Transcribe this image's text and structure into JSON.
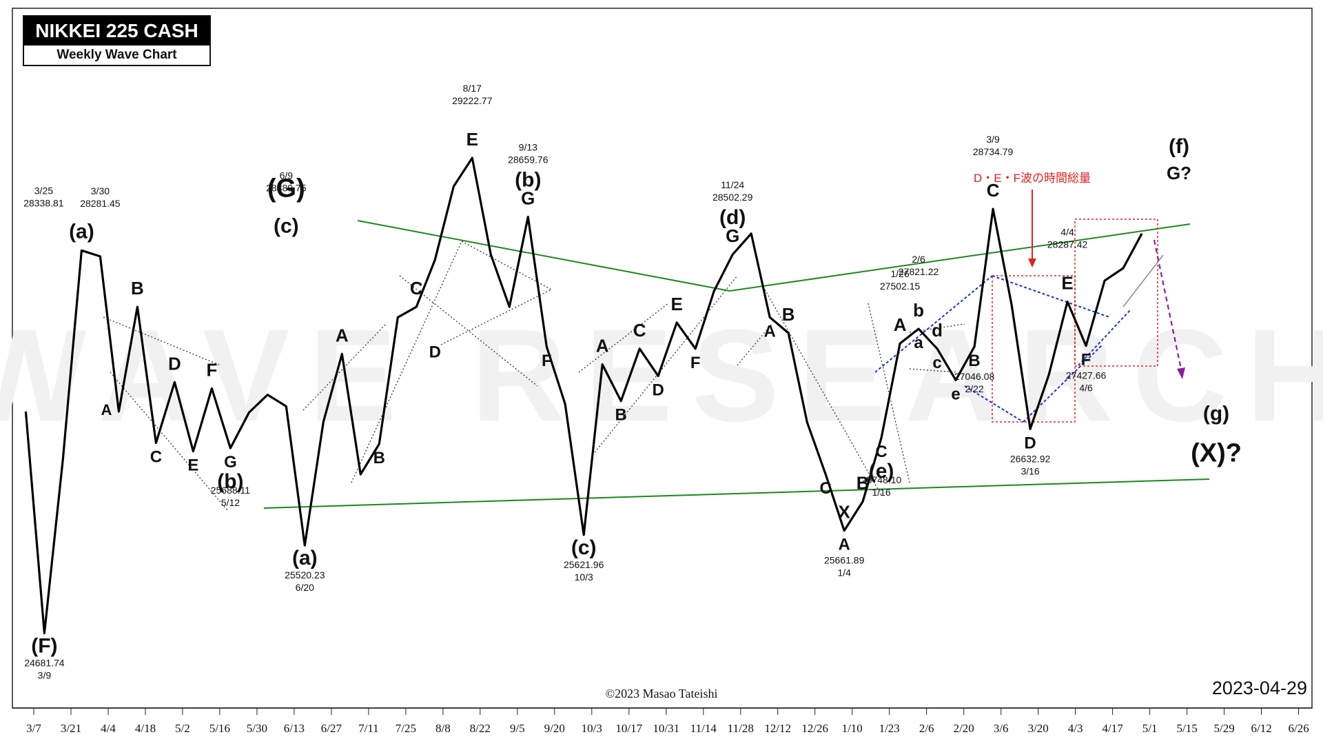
{
  "header": {
    "title": "NIKKEI 225 CASH",
    "subtitle": "Weekly Wave Chart"
  },
  "watermark": "WAVE RESEARCH",
  "copyright": "©2023 Masao Tateishi",
  "chart_date": "2023-04-29",
  "colors": {
    "price_line": "#000000",
    "trendline": "#1a8a1a",
    "projection_box": "#e02020",
    "blue_channel": "#1a2fd8",
    "forecast_arrow": "#8a1aa0",
    "note_text": "#e02020",
    "watermark": "#f1f1f1"
  },
  "annotation": {
    "note": "D・E・F波の時間総量"
  },
  "chart_data": {
    "type": "line",
    "title": "NIKKEI 225 CASH",
    "subtitle": "Weekly Wave Chart",
    "x_tick_labels": [
      "3/7",
      "3/21",
      "4/4",
      "4/18",
      "5/2",
      "5/16",
      "5/30",
      "6/13",
      "6/27",
      "7/11",
      "7/25",
      "8/8",
      "8/22",
      "9/5",
      "9/20",
      "10/3",
      "10/17",
      "10/31",
      "11/14",
      "11/28",
      "12/12",
      "12/26",
      "1/10",
      "1/23",
      "2/6",
      "2/20",
      "3/6",
      "3/20",
      "4/3",
      "4/17",
      "5/1",
      "5/15",
      "5/29",
      "6/12",
      "6/26"
    ],
    "series": [
      {
        "x": [
          "2022-03-04",
          "2022-03-11",
          "2022-03-18",
          "2022-03-25",
          "2022-04-01",
          "2022-04-08",
          "2022-04-15",
          "2022-04-22",
          "2022-04-29",
          "2022-05-06",
          "2022-05-13",
          "2022-05-20",
          "2022-05-27",
          "2022-06-03",
          "2022-06-10",
          "2022-06-17",
          "2022-06-24",
          "2022-07-01",
          "2022-07-08",
          "2022-07-15",
          "2022-07-22",
          "2022-07-29",
          "2022-08-05",
          "2022-08-12",
          "2022-08-19",
          "2022-08-26",
          "2022-09-02",
          "2022-09-09",
          "2022-09-16",
          "2022-09-23",
          "2022-09-30",
          "2022-10-07",
          "2022-10-14",
          "2022-10-21",
          "2022-10-28",
          "2022-11-04",
          "2022-11-11",
          "2022-11-18",
          "2022-11-25",
          "2022-12-02",
          "2022-12-09",
          "2022-12-16",
          "2022-12-23",
          "2022-12-30",
          "2023-01-06",
          "2023-01-13",
          "2023-01-20",
          "2023-01-27",
          "2023-02-03",
          "2023-02-10",
          "2023-02-17",
          "2023-02-24",
          "2023-03-03",
          "2023-03-10",
          "2023-03-17",
          "2023-03-24",
          "2023-03-31",
          "2023-04-07",
          "2023-04-14",
          "2023-04-21",
          "2023-04-28"
        ],
        "y": [
          26800,
          24682,
          26350,
          28339,
          28282,
          26800,
          27800,
          26500,
          27080,
          26420,
          27020,
          26450,
          26790,
          26960,
          26850,
          25520,
          26700,
          27350,
          26200,
          26490,
          27700,
          27800,
          28250,
          28950,
          29223,
          28300,
          27800,
          28660,
          27420,
          26870,
          25622,
          27250,
          26900,
          27400,
          27140,
          27650,
          27400,
          27950,
          28300,
          28500,
          27700,
          27550,
          26700,
          26200,
          25662,
          25940,
          26550,
          27450,
          27590,
          27400,
          27100,
          27420,
          28735,
          27820,
          26633,
          27150,
          27850,
          27428,
          28050,
          28170,
          28500
        ]
      }
    ],
    "x_range": [
      "2022-02-28",
      "2023-06-30"
    ],
    "y_range": [
      24000,
      30600
    ],
    "y_axis_shown": false,
    "grid": false,
    "legend": "none",
    "labels": [
      {
        "text": "(F)",
        "x": "2022-03-11",
        "y": 24682,
        "pos": "below",
        "big": true
      },
      {
        "text": "24681.74",
        "x": "2022-03-11",
        "y": 24682,
        "pos": "below2"
      },
      {
        "text": "3/9",
        "x": "2022-03-11",
        "y": 24682,
        "pos": "below3"
      },
      {
        "text": "(a)",
        "x": "2022-03-25",
        "y": 28339,
        "pos": "above",
        "big": true
      },
      {
        "text": "3/25",
        "x": "2022-03-25",
        "y": 28339,
        "pos": "above_far_left"
      },
      {
        "text": "28338.81",
        "x": "2022-03-25",
        "y": 28339,
        "pos": "above_far_left2"
      },
      {
        "text": "3/30",
        "x": "2022-04-01",
        "y": 28282,
        "pos": "above_far"
      },
      {
        "text": "28281.45",
        "x": "2022-04-01",
        "y": 28282,
        "pos": "above_far2"
      },
      {
        "text": "B",
        "x": "2022-04-15",
        "y": 27800,
        "pos": "above"
      },
      {
        "text": "A",
        "x": "2022-04-08",
        "y": 26800,
        "pos": "left"
      },
      {
        "text": "C",
        "x": "2022-04-22",
        "y": 26500,
        "pos": "below"
      },
      {
        "text": "D",
        "x": "2022-04-29",
        "y": 27080,
        "pos": "above"
      },
      {
        "text": "E",
        "x": "2022-05-06",
        "y": 26420,
        "pos": "below"
      },
      {
        "text": "F",
        "x": "2022-05-13",
        "y": 27020,
        "pos": "above"
      },
      {
        "text": "G",
        "x": "2022-05-20",
        "y": 26450,
        "pos": "below"
      },
      {
        "text": "(b)",
        "x": "2022-05-20",
        "y": 26450,
        "pos": "below2big"
      },
      {
        "text": "25688.11",
        "x": "2022-05-20",
        "y": 26450,
        "pos": "below3"
      },
      {
        "text": "5/12",
        "x": "2022-05-20",
        "y": 26450,
        "pos": "below4"
      },
      {
        "text": "(G)",
        "x": "2022-06-10",
        "y": 28390,
        "pos": "above_huge"
      },
      {
        "text": "(c)",
        "x": "2022-06-10",
        "y": 28390,
        "pos": "above",
        "big": true
      },
      {
        "text": "6/9",
        "x": "2022-06-10",
        "y": 28390,
        "pos": "above_top1"
      },
      {
        "text": "28389.75",
        "x": "2022-06-10",
        "y": 28390,
        "pos": "above_top2"
      },
      {
        "text": "(a)",
        "x": "2022-06-17",
        "y": 25520,
        "pos": "below",
        "big": true
      },
      {
        "text": "25520.23",
        "x": "2022-06-17",
        "y": 25520,
        "pos": "below2"
      },
      {
        "text": "6/20",
        "x": "2022-06-17",
        "y": 25520,
        "pos": "below3"
      },
      {
        "text": "A",
        "x": "2022-07-01",
        "y": 27350,
        "pos": "above"
      },
      {
        "text": "B",
        "x": "2022-07-15",
        "y": 26490,
        "pos": "below"
      },
      {
        "text": "C",
        "x": "2022-07-29",
        "y": 27800,
        "pos": "above"
      },
      {
        "text": "D",
        "x": "2022-08-05",
        "y": 27500,
        "pos": "below"
      },
      {
        "text": "E",
        "x": "2022-08-19",
        "y": 29223,
        "pos": "above"
      },
      {
        "text": "8/17",
        "x": "2022-08-19",
        "y": 29223,
        "pos": "above_top1"
      },
      {
        "text": "29222.77",
        "x": "2022-08-19",
        "y": 29223,
        "pos": "above_top2"
      },
      {
        "text": "F",
        "x": "2022-09-16",
        "y": 27420,
        "pos": "below"
      },
      {
        "text": "G",
        "x": "2022-09-09",
        "y": 28660,
        "pos": "above"
      },
      {
        "text": "(b)",
        "x": "2022-09-09",
        "y": 28660,
        "pos": "above2big"
      },
      {
        "text": "9/13",
        "x": "2022-09-09",
        "y": 28660,
        "pos": "above_top1"
      },
      {
        "text": "28659.76",
        "x": "2022-09-09",
        "y": 28660,
        "pos": "above_top2"
      },
      {
        "text": "(c)",
        "x": "2022-09-30",
        "y": 25622,
        "pos": "below",
        "big": true
      },
      {
        "text": "25621.96",
        "x": "2022-09-30",
        "y": 25622,
        "pos": "below2"
      },
      {
        "text": "10/3",
        "x": "2022-09-30",
        "y": 25622,
        "pos": "below3"
      },
      {
        "text": "A",
        "x": "2022-10-07",
        "y": 27250,
        "pos": "above"
      },
      {
        "text": "B",
        "x": "2022-10-14",
        "y": 26900,
        "pos": "below"
      },
      {
        "text": "C",
        "x": "2022-10-21",
        "y": 27400,
        "pos": "above"
      },
      {
        "text": "D",
        "x": "2022-10-28",
        "y": 27140,
        "pos": "below"
      },
      {
        "text": "E",
        "x": "2022-11-04",
        "y": 27650,
        "pos": "above"
      },
      {
        "text": "F",
        "x": "2022-11-11",
        "y": 27400,
        "pos": "below"
      },
      {
        "text": "G",
        "x": "2022-11-25",
        "y": 28300,
        "pos": "above"
      },
      {
        "text": "(d)",
        "x": "2022-11-25",
        "y": 28300,
        "pos": "above2big"
      },
      {
        "text": "11/24",
        "x": "2022-11-25",
        "y": 28300,
        "pos": "above_top1"
      },
      {
        "text": "28502.29",
        "x": "2022-11-25",
        "y": 28300,
        "pos": "above_top2"
      },
      {
        "text": "A",
        "x": "2022-12-09",
        "y": 27700,
        "pos": "below"
      },
      {
        "text": "B",
        "x": "2022-12-16",
        "y": 27550,
        "pos": "above"
      },
      {
        "text": "C",
        "x": "2022-12-30",
        "y": 26200,
        "pos": "below"
      },
      {
        "text": "X",
        "x": "2023-01-06",
        "y": 25662,
        "pos": "above"
      },
      {
        "text": "A",
        "x": "2023-01-06",
        "y": 25662,
        "pos": "below"
      },
      {
        "text": "25661.89",
        "x": "2023-01-06",
        "y": 25662,
        "pos": "below2"
      },
      {
        "text": "1/4",
        "x": "2023-01-06",
        "y": 25662,
        "pos": "below3"
      },
      {
        "text": "B",
        "x": "2023-01-13",
        "y": 25940,
        "pos": "above"
      },
      {
        "text": "C",
        "x": "2023-01-20",
        "y": 26550,
        "pos": "below"
      },
      {
        "text": "(e)",
        "x": "2023-01-20",
        "y": 26550,
        "pos": "below2big"
      },
      {
        "text": "25748.10",
        "x": "2023-01-20",
        "y": 26550,
        "pos": "below3"
      },
      {
        "text": "1/16",
        "x": "2023-01-20",
        "y": 26550,
        "pos": "below4"
      },
      {
        "text": "A",
        "x": "2023-01-27",
        "y": 27450,
        "pos": "above"
      },
      {
        "text": "1/26",
        "x": "2023-01-27",
        "y": 27450,
        "pos": "above_top1"
      },
      {
        "text": "27502.15",
        "x": "2023-01-27",
        "y": 27450,
        "pos": "above_top2"
      },
      {
        "text": "a",
        "x": "2023-02-03",
        "y": 27590,
        "pos": "below"
      },
      {
        "text": "b",
        "x": "2023-02-03",
        "y": 27590,
        "pos": "above"
      },
      {
        "text": "2/6",
        "x": "2023-02-03",
        "y": 27590,
        "pos": "above_top1"
      },
      {
        "text": "27821.22",
        "x": "2023-02-03",
        "y": 27590,
        "pos": "above_top2"
      },
      {
        "text": "c",
        "x": "2023-02-10",
        "y": 27400,
        "pos": "below"
      },
      {
        "text": "d",
        "x": "2023-02-10",
        "y": 27400,
        "pos": "above"
      },
      {
        "text": "e",
        "x": "2023-02-17",
        "y": 27100,
        "pos": "below"
      },
      {
        "text": "B",
        "x": "2023-02-24",
        "y": 27420,
        "pos": "below"
      },
      {
        "text": "27046.08",
        "x": "2023-02-24",
        "y": 27420,
        "pos": "below2"
      },
      {
        "text": "2/22",
        "x": "2023-02-24",
        "y": 27420,
        "pos": "below3"
      },
      {
        "text": "C",
        "x": "2023-03-03",
        "y": 28735,
        "pos": "above"
      },
      {
        "text": "3/9",
        "x": "2023-03-03",
        "y": 28735,
        "pos": "above_top1"
      },
      {
        "text": "28734.79",
        "x": "2023-03-03",
        "y": 28735,
        "pos": "above_top2"
      },
      {
        "text": "D",
        "x": "2023-03-17",
        "y": 26633,
        "pos": "below"
      },
      {
        "text": "26632.92",
        "x": "2023-03-17",
        "y": 26633,
        "pos": "below2"
      },
      {
        "text": "3/16",
        "x": "2023-03-17",
        "y": 26633,
        "pos": "below3"
      },
      {
        "text": "E",
        "x": "2023-03-31",
        "y": 27850,
        "pos": "above"
      },
      {
        "text": "4/4",
        "x": "2023-03-31",
        "y": 27850,
        "pos": "above_top1"
      },
      {
        "text": "28287.42",
        "x": "2023-03-31",
        "y": 27850,
        "pos": "above_top2"
      },
      {
        "text": "F",
        "x": "2023-04-07",
        "y": 27428,
        "pos": "below"
      },
      {
        "text": "27427.66",
        "x": "2023-04-07",
        "y": 27428,
        "pos": "below2"
      },
      {
        "text": "4/6",
        "x": "2023-04-07",
        "y": 27428,
        "pos": "below3"
      },
      {
        "text": "(f)",
        "x": "2023-05-12",
        "y": 28900,
        "pos": "above_far_big"
      },
      {
        "text": "G?",
        "x": "2023-05-12",
        "y": 28900,
        "pos": "above"
      },
      {
        "text": "(g)",
        "x": "2023-05-26",
        "y": 26900,
        "pos": "below",
        "big": true
      },
      {
        "text": "(X)?",
        "x": "2023-05-26",
        "y": 26900,
        "pos": "below2huge"
      }
    ]
  }
}
